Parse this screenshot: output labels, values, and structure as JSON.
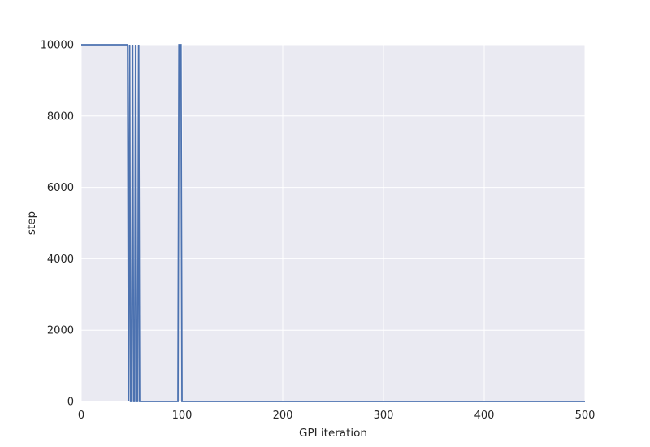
{
  "chart_data": {
    "type": "line",
    "title": "",
    "xlabel": "GPI iteration",
    "ylabel": "step",
    "xlim": [
      0,
      500
    ],
    "ylim": [
      0,
      10000
    ],
    "xticks": [
      0,
      100,
      200,
      300,
      400,
      500
    ],
    "yticks": [
      0,
      2000,
      4000,
      6000,
      8000,
      10000
    ],
    "xtick_labels": [
      "0",
      "100",
      "200",
      "300",
      "400",
      "500"
    ],
    "ytick_labels": [
      "0",
      "2000",
      "4000",
      "6000",
      "8000",
      "10000"
    ],
    "grid": true,
    "background_color": "#eaeaf2",
    "grid_color": "#ffffff",
    "series": [
      {
        "color": "#4c72b0",
        "x": [
          0,
          46,
          47,
          48,
          49,
          50,
          51,
          52,
          53,
          54,
          55,
          56,
          57,
          58,
          59,
          60,
          96,
          97,
          98,
          99,
          100,
          500
        ],
        "y": [
          10000,
          10000,
          0,
          10000,
          0,
          0,
          10000,
          0,
          0,
          10000,
          0,
          0,
          10000,
          0,
          0,
          0,
          0,
          10000,
          10000,
          10000,
          0,
          0
        ]
      }
    ]
  }
}
